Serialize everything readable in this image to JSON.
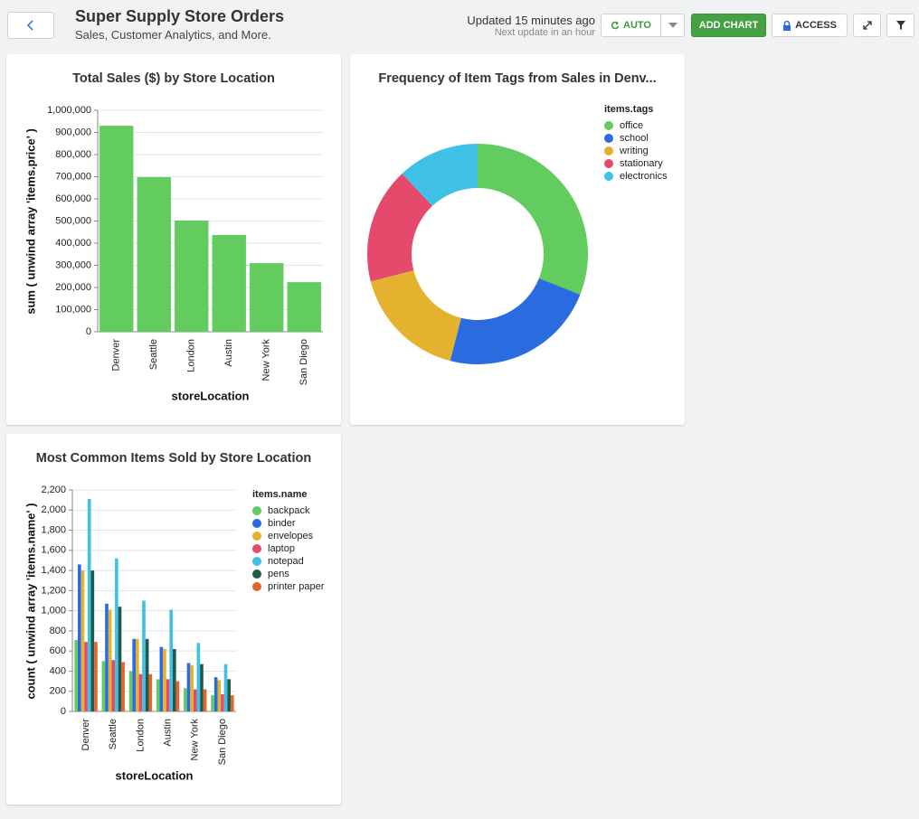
{
  "header": {
    "title": "Super Supply Store Orders",
    "subtitle": "Sales, Customer Analytics, and More.",
    "updated": "Updated 15 minutes ago",
    "next_update": "Next update in an hour"
  },
  "toolbar": {
    "auto": "AUTO",
    "add_chart": "ADD CHART",
    "access": "ACCESS"
  },
  "chart_data": [
    {
      "type": "bar",
      "title": "Total Sales ($) by Store Location",
      "x_label": "storeLocation",
      "y_label": "sum ( unwind array 'items.price' )",
      "categories": [
        "Denver",
        "Seattle",
        "London",
        "Austin",
        "New York",
        "San Diego"
      ],
      "values": [
        930000,
        698000,
        502000,
        437000,
        310000,
        224000
      ],
      "color": "#62cc5f",
      "ylim": [
        0,
        1000000
      ],
      "yticks": [
        0,
        {
          "value": 100000,
          "label": "100,000"
        },
        {
          "value": 200000,
          "label": "200,000"
        },
        {
          "value": 300000,
          "label": "300,000"
        },
        {
          "value": 400000,
          "label": "400,000"
        },
        {
          "value": 500000,
          "label": "500,000"
        },
        {
          "value": 600000,
          "label": "600,000"
        },
        {
          "value": 700000,
          "label": "700,000"
        },
        {
          "value": 800000,
          "label": "800,000"
        },
        {
          "value": 900000,
          "label": "900,000"
        },
        {
          "value": 1000000,
          "label": "1,000,000"
        }
      ],
      "grid": true
    },
    {
      "type": "pie",
      "donut": true,
      "title": "Frequency of Item Tags from Sales in Denv...",
      "legend_title": "items.tags",
      "categories": [
        "office",
        "school",
        "writing",
        "stationary",
        "electronics"
      ],
      "values": [
        31,
        23,
        17,
        17,
        12
      ],
      "colors": [
        "#62cc5f",
        "#2a6be0",
        "#e5b22f",
        "#e5496b",
        "#3fc0e7"
      ]
    },
    {
      "type": "grouped_bar",
      "title": "Most Common Items Sold by Store Location",
      "x_label": "storeLocation",
      "y_label": "count ( unwind array 'items.name' )",
      "legend_title": "items.name",
      "categories": [
        "Denver",
        "Seattle",
        "London",
        "Austin",
        "New York",
        "San Diego"
      ],
      "series": [
        {
          "name": "backpack",
          "color": "#62cc5f",
          "values": [
            710,
            500,
            400,
            320,
            230,
            160
          ]
        },
        {
          "name": "binder",
          "color": "#2a6be0",
          "values": [
            1460,
            1070,
            720,
            640,
            480,
            340
          ]
        },
        {
          "name": "envelopes",
          "color": "#e5b22f",
          "values": [
            1400,
            1010,
            720,
            620,
            460,
            310
          ]
        },
        {
          "name": "laptop",
          "color": "#e5496b",
          "values": [
            690,
            510,
            370,
            320,
            220,
            170
          ]
        },
        {
          "name": "notepad",
          "color": "#3fc0e7",
          "values": [
            2110,
            1520,
            1100,
            1010,
            680,
            470
          ]
        },
        {
          "name": "pens",
          "color": "#1f5a4a",
          "values": [
            1400,
            1040,
            720,
            620,
            470,
            320
          ]
        },
        {
          "name": "printer paper",
          "color": "#e7632c",
          "values": [
            690,
            490,
            370,
            300,
            220,
            160
          ]
        }
      ],
      "ylim": [
        0,
        2200
      ],
      "yticks": [
        0,
        200,
        400,
        600,
        800,
        {
          "value": 1000,
          "label": "1,000"
        },
        {
          "value": 1200,
          "label": "1,200"
        },
        {
          "value": 1400,
          "label": "1,400"
        },
        {
          "value": 1600,
          "label": "1,600"
        },
        {
          "value": 1800,
          "label": "1,800"
        },
        {
          "value": 2000,
          "label": "2,000"
        },
        {
          "value": 2200,
          "label": "2,200"
        }
      ],
      "grid": true
    }
  ]
}
